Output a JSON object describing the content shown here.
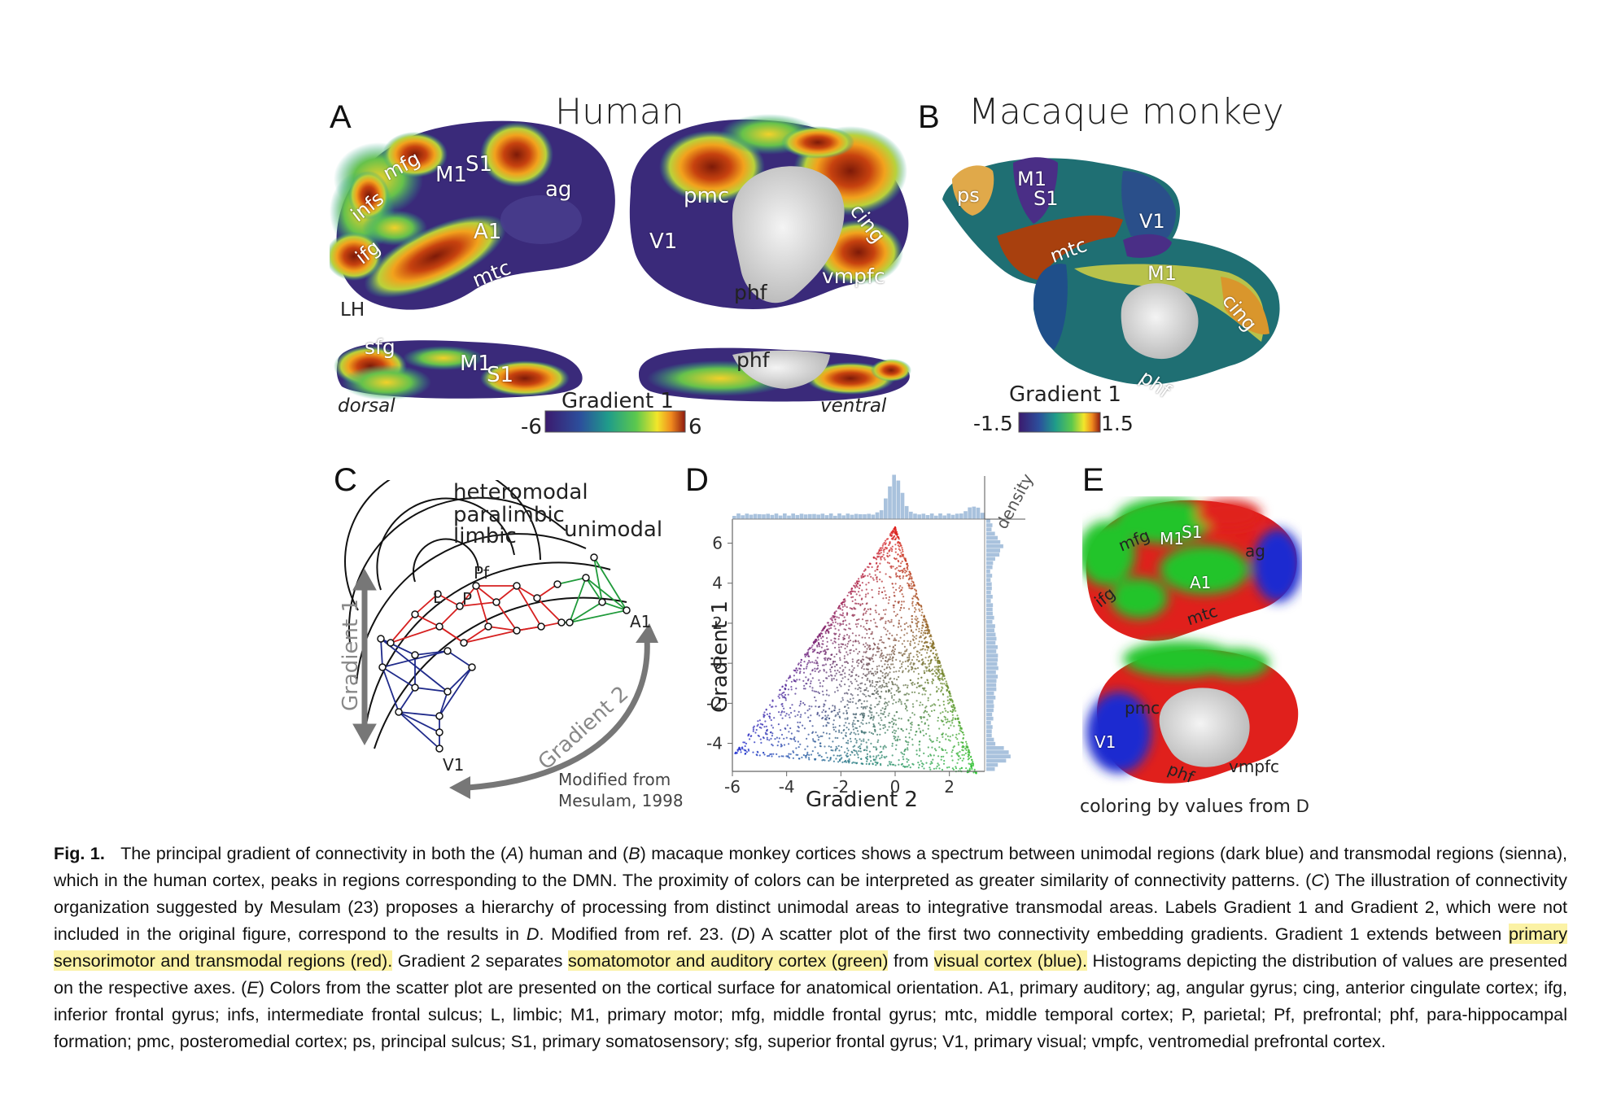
{
  "panels": {
    "A": {
      "letter": "A",
      "title": "Human",
      "labels": [
        "mfg",
        "M1",
        "S1",
        "ag",
        "infs",
        "A1",
        "ifg",
        "mtc",
        "pmc",
        "cing",
        "V1",
        "vmpfc",
        "phf",
        "sfg",
        "M1",
        "S1",
        "phf"
      ],
      "hemisphere": "LH",
      "views": [
        "dorsal",
        "ventral"
      ],
      "colorbar": {
        "title": "Gradient 1",
        "min": "-6",
        "max": "6"
      }
    },
    "B": {
      "letter": "B",
      "title": "Macaque monkey",
      "labels": [
        "ps",
        "M1",
        "S1",
        "V1",
        "mtc",
        "M1",
        "cing",
        "phf"
      ],
      "colorbar": {
        "title": "Gradient 1",
        "min": "-1.5",
        "max": "1.5"
      }
    },
    "C": {
      "letter": "C",
      "rings": [
        "heteromodal",
        "paralimbic",
        "limbic",
        "unimodal"
      ],
      "nodes": [
        "Pf",
        "L",
        "P",
        "A1",
        "V1"
      ],
      "axis1": "Gradient 1",
      "axis2": "Gradient 2",
      "credit": [
        "Modified from",
        "Mesulam, 1998"
      ]
    },
    "D": {
      "letter": "D",
      "density_label": "density",
      "xlabel": "Gradient 2",
      "ylabel": "Gradient 1"
    },
    "E": {
      "letter": "E",
      "labels": [
        "mfg",
        "M1",
        "S1",
        "ag",
        "ifg",
        "A1",
        "mtc",
        "pmc",
        "V1",
        "phf",
        "vmpfc"
      ],
      "footer": "coloring by values from",
      "footer_ref": "D"
    }
  },
  "chart_data": {
    "type": "scatter",
    "title": "",
    "xlabel": "Gradient 2",
    "ylabel": "Gradient 1",
    "xlim": [
      -6,
      3.3
    ],
    "ylim": [
      -5.4,
      7.2
    ],
    "xticks": [
      -6,
      -4,
      -2,
      0,
      2
    ],
    "yticks": [
      6,
      4,
      2,
      0,
      -2,
      -4
    ],
    "shape_vertices": {
      "apex": [
        0,
        6.8
      ],
      "left_tip": [
        -5.9,
        -4.5
      ],
      "right_tip": [
        3.0,
        -5.5
      ]
    },
    "colors": {
      "top": "#e0201c",
      "left": "#1a2bd0",
      "right": "#22c42a"
    },
    "marginals": {
      "top": "Gradient 2 histogram",
      "right": "Gradient 1 histogram",
      "color": "#a9c2dd"
    }
  },
  "caption": {
    "label": "Fig. 1.",
    "p1": "The principal gradient of connectivity in both the (",
    "p1a": "A",
    "p2": ") human and (",
    "p2a": "B",
    "p3": ") macaque monkey cortices shows a spectrum between unimodal regions (dark blue) and transmodal regions (sienna), which in the human cortex, peaks in regions corresponding to the DMN. The proximity of colors can be interpreted as greater similarity of connectivity patterns. (",
    "p3a": "C",
    "p4": ") The illustration of connectivity organization suggested by Mesulam (23) proposes a hierarchy of processing from distinct unimodal areas to integrative transmodal areas. Labels Gradient 1 and Gradient 2, which were not included in the original figure, correspond to the results in ",
    "p4a": "D",
    "p5": ". Modified from ref. 23. (",
    "p5a": "D",
    "p6": ") A scatter plot of the first two connectivity embedding gradients. Gradient 1 extends between ",
    "hl1": "primary sensorimotor and transmodal regions (red).",
    "p7": " Gradient 2 separates ",
    "hl2": "somatomotor and auditory cortex (green)",
    "p8": " from ",
    "hl3": "visual cortex (blue).",
    "p9": " Histograms depicting the distribution of values are presented on the respective axes. (",
    "p9a": "E",
    "p10": ") Colors from the scatter plot are presented on the cortical surface for anatomical orientation. A1, primary auditory; ag, angular gyrus; cing, anterior cingulate cortex; ifg, inferior frontal gyrus; infs, intermediate frontal sulcus; L, limbic; M1, primary motor; mfg, middle frontal gyrus; mtc, middle temporal cortex; P, parietal; Pf, prefrontal; phf, para-hippocampal formation; pmc, posteromedial cortex; ps, principal sulcus; S1, primary somatosensory; sfg, superior frontal gyrus; V1, primary visual; vmpfc, ventromedial prefrontal cortex."
  }
}
